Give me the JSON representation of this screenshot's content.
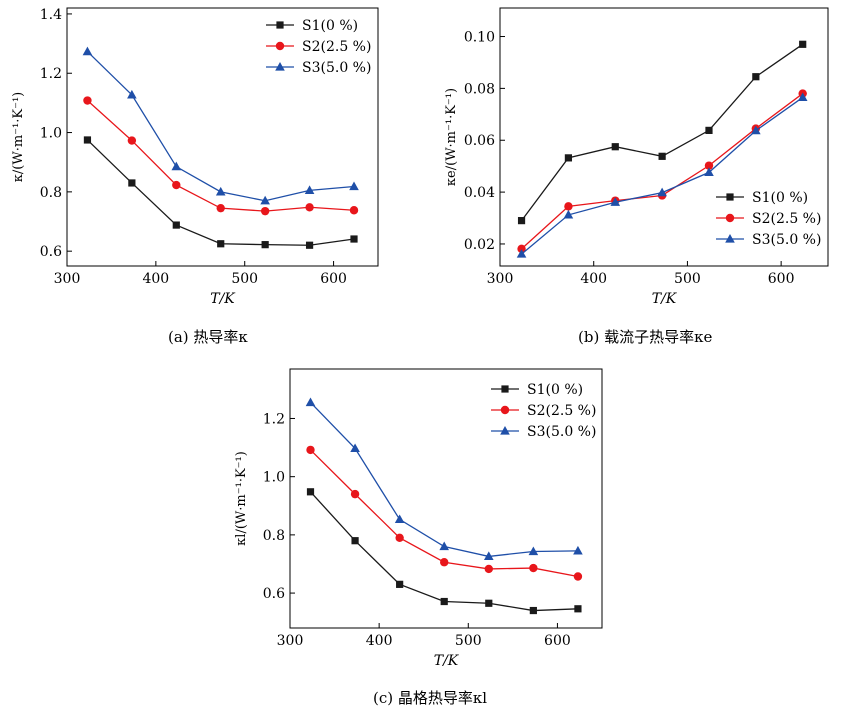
{
  "series_styles": [
    {
      "color": "#1a1a1a",
      "marker": "square"
    },
    {
      "color": "#e8161b",
      "marker": "circle"
    },
    {
      "color": "#1f4fa8",
      "marker": "triangle"
    }
  ],
  "chart_data": [
    {
      "type": "line",
      "caption": "(a) 热导率κ",
      "ylabel": "κ/(W·m⁻¹·K⁻¹)",
      "xlabel": "T/K",
      "xlim": [
        300,
        650
      ],
      "ylim": [
        0.55,
        1.42
      ],
      "xticks": [
        300,
        400,
        500,
        600
      ],
      "xtick_labels": [
        "300",
        "400",
        "500",
        "600"
      ],
      "yticks": [
        0.6,
        0.8,
        1.0,
        1.2,
        1.4
      ],
      "ytick_labels": [
        "0.6",
        "0.8",
        "1.0",
        "1.2",
        "1.4"
      ],
      "x": [
        323,
        373,
        423,
        473,
        523,
        573,
        623
      ],
      "legend_position": "top-right",
      "series": [
        {
          "name": "S1(0 %)",
          "values": [
            0.975,
            0.83,
            0.688,
            0.625,
            0.622,
            0.62,
            0.641
          ]
        },
        {
          "name": "S2(2.5 %)",
          "values": [
            1.108,
            0.973,
            0.823,
            0.745,
            0.735,
            0.748,
            0.738
          ]
        },
        {
          "name": "S3(5.0 %)",
          "values": [
            1.273,
            1.127,
            0.885,
            0.8,
            0.77,
            0.805,
            0.818
          ]
        }
      ]
    },
    {
      "type": "line",
      "caption": "(b) 载流子热导率κe",
      "ylabel": "κe/(W·m⁻¹·K⁻¹)",
      "xlabel": "T/K",
      "xlim": [
        300,
        650
      ],
      "ylim": [
        0.0115,
        0.111
      ],
      "xticks": [
        300,
        400,
        500,
        600
      ],
      "xtick_labels": [
        "300",
        "400",
        "500",
        "600"
      ],
      "yticks": [
        0.02,
        0.04,
        0.06,
        0.08,
        0.1
      ],
      "ytick_labels": [
        "0.02",
        "0.04",
        "0.06",
        "0.08",
        "0.10"
      ],
      "x": [
        323,
        373,
        423,
        473,
        523,
        573,
        623
      ],
      "legend_position": "bottom-right",
      "series": [
        {
          "name": "S1(0 %)",
          "values": [
            0.029,
            0.0532,
            0.0575,
            0.0538,
            0.0638,
            0.0845,
            0.097
          ]
        },
        {
          "name": "S2(2.5 %)",
          "values": [
            0.0181,
            0.0345,
            0.0367,
            0.0387,
            0.0502,
            0.0645,
            0.078
          ]
        },
        {
          "name": "S3(5.0 %)",
          "values": [
            0.0161,
            0.0312,
            0.0361,
            0.0398,
            0.0476,
            0.0637,
            0.0765
          ]
        }
      ]
    },
    {
      "type": "line",
      "caption": "(c) 晶格热导率κl",
      "ylabel": "κl/(W·m⁻¹·K⁻¹)",
      "xlabel": "T/K",
      "xlim": [
        300,
        650
      ],
      "ylim": [
        0.48,
        1.37
      ],
      "xticks": [
        300,
        400,
        500,
        600
      ],
      "xtick_labels": [
        "300",
        "400",
        "500",
        "600"
      ],
      "yticks": [
        0.6,
        0.8,
        1.0,
        1.2
      ],
      "ytick_labels": [
        "0.6",
        "0.8",
        "1.0",
        "1.2"
      ],
      "x": [
        323,
        373,
        423,
        473,
        523,
        573,
        623
      ],
      "legend_position": "top-right",
      "series": [
        {
          "name": "S1(0 %)",
          "values": [
            0.948,
            0.78,
            0.63,
            0.571,
            0.565,
            0.54,
            0.546
          ]
        },
        {
          "name": "S2(2.5 %)",
          "values": [
            1.092,
            0.94,
            0.79,
            0.706,
            0.683,
            0.686,
            0.657
          ]
        },
        {
          "name": "S3(5.0 %)",
          "values": [
            1.255,
            1.097,
            0.853,
            0.76,
            0.726,
            0.743,
            0.745
          ]
        }
      ]
    }
  ]
}
